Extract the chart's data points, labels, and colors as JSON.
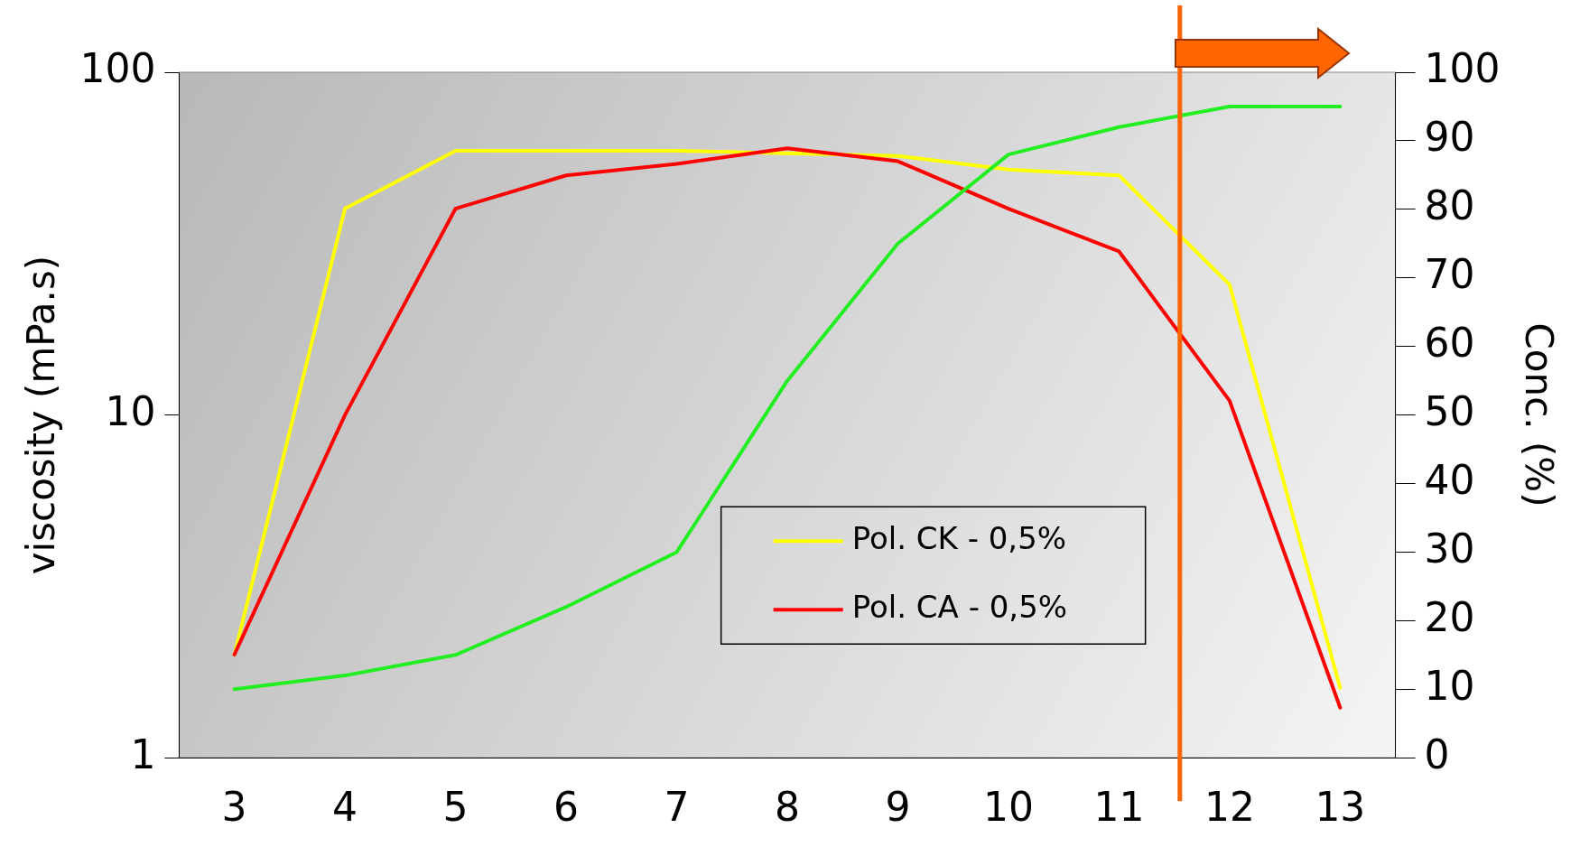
{
  "chart_data": {
    "type": "line",
    "x": [
      3,
      4,
      5,
      6,
      7,
      8,
      9,
      10,
      11,
      12,
      13
    ],
    "xlim": [
      2.5,
      13.5
    ],
    "xticks": [
      3,
      4,
      5,
      6,
      7,
      8,
      9,
      10,
      11,
      12,
      13
    ],
    "ylabel": "viscosity (mPa.s)",
    "y2label": "Conc. (%)",
    "log": "y",
    "ylim": [
      1,
      100
    ],
    "yticks": [
      1,
      10,
      100
    ],
    "y2lim": [
      0,
      100
    ],
    "y2ticks": [
      0,
      10,
      20,
      30,
      40,
      50,
      60,
      70,
      80,
      90,
      100
    ],
    "series": [
      {
        "name": "Pol. CK - 0,5%",
        "color": "#ffff00",
        "values": [
          2.0,
          40,
          59,
          59,
          59,
          58,
          57,
          52,
          50,
          24,
          1.6
        ]
      },
      {
        "name": "Pol. CA - 0,5%",
        "color": "#ff0000",
        "values": [
          2.0,
          10,
          40,
          50,
          54,
          60,
          55,
          40,
          30,
          11,
          1.4
        ]
      },
      {
        "color": "#22ee22",
        "axis": "y2",
        "values": [
          10,
          12,
          15,
          22,
          30,
          55,
          75,
          88,
          92,
          95,
          95
        ]
      }
    ],
    "ref_lines": [
      {
        "axis": "x",
        "value": 11.55,
        "color": "#ff6600"
      }
    ],
    "legend": "bottom",
    "grid": false,
    "marker": "none",
    "line_style": "solid"
  }
}
